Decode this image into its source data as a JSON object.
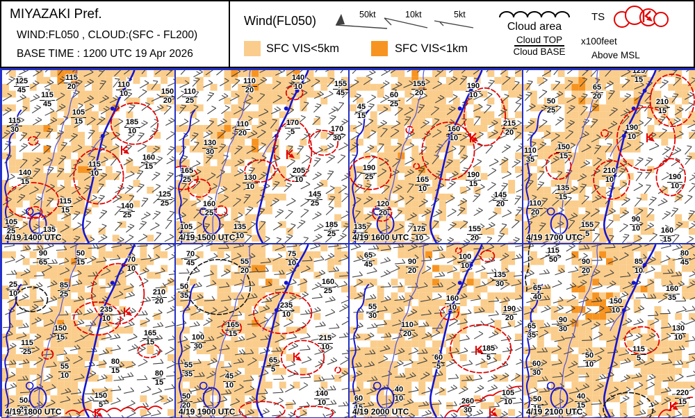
{
  "header": {
    "title": "MIYAZAKI Pref.",
    "line2": "WIND:FL050 , CLOUD:(SFC - FL200)",
    "line3": "BASE TIME : 1200 UTC 19 Apr 2026"
  },
  "legend": {
    "wind_title": "Wind(FL050)",
    "kt50": "50kt",
    "kt10": "10kt",
    "kt5": "5kt",
    "vis5": "SFC VIS<5km",
    "vis1": "SFC VIS<1km",
    "cloud_area": "Cloud area",
    "ts": "TS",
    "cloud_top": "Cloud TOP",
    "cloud_base": "Cloud BASE",
    "units_feet": "x100feet",
    "units_msl": "Above MSL"
  },
  "colors": {
    "vis5_fill": "#FACD8C",
    "vis1_fill": "#F79421",
    "coast_blue": "#1414D2",
    "river_blue": "#5050DC",
    "cloud_red": "#E30000",
    "contour_black": "#111111",
    "barb_gray": "#404040",
    "panel_border": "#2230C8"
  },
  "panels": [
    {
      "timestamp": "4/19 1400 UTC",
      "ts_points": [
        [
          170,
          108
        ]
      ],
      "labels": [
        [
          28,
          23,
          "125",
          "45"
        ],
        [
          100,
          18,
          "115",
          "20"
        ],
        [
          175,
          28,
          "110",
          "10"
        ],
        [
          238,
          38,
          "150",
          "20"
        ],
        [
          65,
          43,
          "115",
          "45"
        ],
        [
          110,
          68,
          "105",
          "15"
        ],
        [
          18,
          80,
          "115",
          "30"
        ],
        [
          187,
          82,
          "185",
          "10"
        ],
        [
          33,
          155,
          "140",
          "15"
        ],
        [
          133,
          143,
          "115",
          "10"
        ],
        [
          211,
          133,
          "160",
          "15"
        ],
        [
          91,
          196,
          "115",
          "15"
        ],
        [
          180,
          203,
          "140",
          "25"
        ],
        [
          234,
          186,
          "125",
          "25"
        ],
        [
          13,
          226,
          "105",
          "25"
        ],
        [
          68,
          237,
          "135",
          ""
        ]
      ]
    },
    {
      "timestamp": "4/19 1500 UTC",
      "ts_points": [
        [
          158,
          114
        ]
      ],
      "labels": [
        [
          20,
          38,
          "110",
          "25"
        ],
        [
          106,
          23,
          "110",
          "20"
        ],
        [
          176,
          18,
          "140",
          "10"
        ],
        [
          237,
          27,
          "155",
          "45"
        ],
        [
          96,
          85,
          "110",
          "20"
        ],
        [
          168,
          83,
          "170",
          "5"
        ],
        [
          232,
          92,
          "170",
          "30"
        ],
        [
          49,
          112,
          "130",
          "30"
        ],
        [
          16,
          152,
          "165",
          "25"
        ],
        [
          107,
          162,
          "130",
          "10"
        ],
        [
          177,
          152,
          "205",
          "10"
        ],
        [
          200,
          186,
          "145",
          "25"
        ],
        [
          48,
          200,
          "160",
          "25"
        ],
        [
          15,
          233,
          "105",
          "25"
        ],
        [
          92,
          233,
          "135",
          "10"
        ],
        [
          224,
          230,
          "185",
          "25"
        ]
      ]
    },
    {
      "timestamp": "4/19 1600 UTC",
      "ts_points": [
        [
          172,
          90
        ]
      ],
      "labels": [
        [
          100,
          27,
          "155",
          "20"
        ],
        [
          178,
          30,
          "190",
          "10"
        ],
        [
          64,
          43,
          "60",
          "25"
        ],
        [
          17,
          60,
          "45",
          "15"
        ],
        [
          230,
          84,
          "215",
          "20"
        ],
        [
          150,
          92,
          "160",
          "10"
        ],
        [
          28,
          148,
          "190",
          "25"
        ],
        [
          105,
          165,
          "165",
          "10"
        ],
        [
          178,
          158,
          "190",
          "15"
        ],
        [
          217,
          187,
          "145",
          "20"
        ],
        [
          48,
          200,
          "120",
          "20"
        ],
        [
          15,
          233,
          "135",
          "25"
        ],
        [
          100,
          236,
          "175",
          "10"
        ],
        [
          180,
          236,
          "155",
          "20"
        ]
      ]
    },
    {
      "timestamp": "4/19 1700 UTC",
      "ts_points": [
        [
          176,
          90
        ]
      ],
      "labels": [
        [
          166,
          8,
          "125",
          "15"
        ],
        [
          106,
          32,
          "65",
          "20"
        ],
        [
          40,
          52,
          "50",
          "25"
        ],
        [
          200,
          53,
          "210",
          "15"
        ],
        [
          156,
          90,
          "190",
          "10"
        ],
        [
          10,
          123,
          "110",
          "35"
        ],
        [
          58,
          118,
          "150",
          "15"
        ],
        [
          124,
          152,
          "210",
          "10"
        ],
        [
          218,
          161,
          "190",
          "10"
        ],
        [
          57,
          177,
          "135",
          "15"
        ],
        [
          17,
          199,
          "110",
          "20"
        ],
        [
          92,
          230,
          "155",
          "5"
        ],
        [
          162,
          222,
          "90",
          "10"
        ],
        [
          207,
          238,
          "160",
          "15"
        ]
      ]
    },
    {
      "timestamp": "4/19 1800 UTC",
      "ts_points": [
        [
          174,
          90
        ],
        [
          132,
          236
        ]
      ],
      "labels": [
        [
          59,
          20,
          "90",
          "65"
        ],
        [
          113,
          20,
          "50",
          "15"
        ],
        [
          186,
          29,
          "70",
          "10"
        ],
        [
          16,
          65,
          "25",
          "10"
        ],
        [
          226,
          76,
          "210",
          "20"
        ],
        [
          89,
          66,
          "85",
          "25"
        ],
        [
          150,
          101,
          "235",
          "10"
        ],
        [
          84,
          128,
          "150",
          "15"
        ],
        [
          213,
          135,
          "165",
          "15"
        ],
        [
          36,
          149,
          "115",
          "25"
        ],
        [
          90,
          183,
          "55",
          "10"
        ],
        [
          163,
          176,
          "80",
          "15"
        ],
        [
          226,
          193,
          "80",
          "15"
        ],
        [
          142,
          225,
          "150",
          "5"
        ],
        [
          31,
          232,
          "50",
          "20"
        ]
      ]
    },
    {
      "timestamp": "4/19 1900 UTC",
      "ts_points": [
        [
          168,
          155
        ]
      ],
      "labels": [
        [
          21,
          21,
          "70",
          "45"
        ],
        [
          99,
          32,
          "55",
          "20"
        ],
        [
          167,
          21,
          "75",
          "10"
        ],
        [
          12,
          68,
          "50",
          "35"
        ],
        [
          219,
          61,
          "160",
          "25"
        ],
        [
          159,
          95,
          "235",
          "10"
        ],
        [
          82,
          123,
          "165",
          "15"
        ],
        [
          32,
          141,
          "100",
          "30"
        ],
        [
          215,
          142,
          "215",
          "10"
        ],
        [
          18,
          181,
          "55",
          "35"
        ],
        [
          77,
          197,
          "45",
          "10"
        ],
        [
          140,
          174,
          "65",
          "5"
        ],
        [
          15,
          226,
          "50",
          "20"
        ],
        [
          210,
          222,
          "140",
          "10"
        ]
      ]
    },
    {
      "timestamp": "4/19 2000 UTC",
      "ts_points": [
        [
          180,
          145
        ],
        [
          200,
          235
        ]
      ],
      "labels": [
        [
          27,
          23,
          "65",
          "45"
        ],
        [
          90,
          32,
          "90",
          "20"
        ],
        [
          166,
          25,
          "100",
          "10"
        ],
        [
          216,
          51,
          "135",
          "30"
        ],
        [
          33,
          97,
          "55",
          "30"
        ],
        [
          148,
          85,
          "160",
          "10"
        ],
        [
          230,
          100,
          "190",
          "20"
        ],
        [
          83,
          123,
          "110",
          "20"
        ],
        [
          200,
          157,
          "185",
          "5"
        ],
        [
          128,
          170,
          "60",
          "5"
        ],
        [
          71,
          216,
          "40",
          "10"
        ],
        [
          13,
          229,
          "60",
          "15"
        ],
        [
          170,
          233,
          "260",
          "30"
        ],
        [
          228,
          221,
          "105",
          "10"
        ]
      ]
    },
    {
      "timestamp": "4/19 2100 UTC",
      "ts_points": [
        [
          210,
          226
        ]
      ],
      "labels": [
        [
          43,
          16,
          "115",
          "50"
        ],
        [
          90,
          32,
          "90",
          "20"
        ],
        [
          166,
          32,
          "85",
          "10"
        ],
        [
          232,
          20,
          "80",
          "45"
        ],
        [
          20,
          70,
          "65",
          "40"
        ],
        [
          214,
          71,
          "160",
          "35"
        ],
        [
          133,
          89,
          "150",
          "10"
        ],
        [
          57,
          116,
          "90",
          "30"
        ],
        [
          12,
          125,
          "65",
          "35"
        ],
        [
          223,
          128,
          "130",
          "10"
        ],
        [
          166,
          158,
          "115",
          "5"
        ],
        [
          95,
          167,
          "50",
          "10"
        ],
        [
          19,
          179,
          "60",
          "30"
        ],
        [
          83,
          226,
          "40",
          "15"
        ],
        [
          20,
          230,
          "50",
          "15"
        ],
        [
          229,
          221,
          "220",
          "15"
        ]
      ]
    }
  ]
}
